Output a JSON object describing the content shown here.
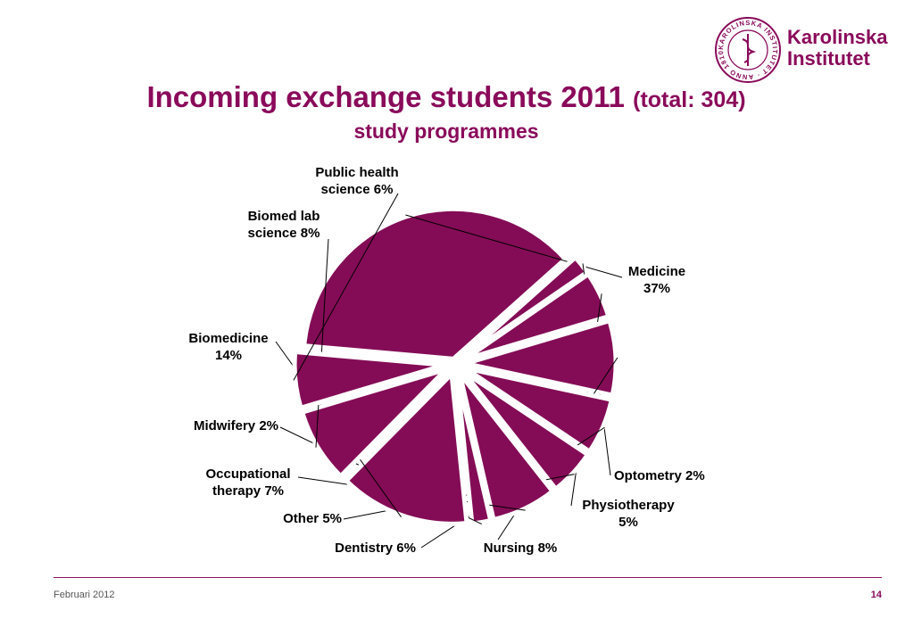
{
  "header": {
    "title_main": "Incoming exchange students 2011",
    "title_total": "(total: 304)",
    "subtitle": "study programmes"
  },
  "logo": {
    "line1": "Karolinska",
    "line2": "Institutet",
    "seal_text": "KAROLINSKA INSTITUTET · ANNO 1810"
  },
  "colors": {
    "accent": "#8a0a5a",
    "slice": "#840c56"
  },
  "chart_data": {
    "type": "pie",
    "title": "Incoming exchange students 2011 (total: 304)",
    "subtitle": "study programmes",
    "slices": [
      {
        "label": "Medicine",
        "value": 37,
        "text": "Medicine 37%"
      },
      {
        "label": "Optometry",
        "value": 2,
        "text": "Optometry 2%"
      },
      {
        "label": "Physiotherapy",
        "value": 5,
        "text": "Physiotherapy 5%"
      },
      {
        "label": "Nursing",
        "value": 8,
        "text": "Nursing 8%"
      },
      {
        "label": "Dentistry",
        "value": 6,
        "text": "Dentistry 6%"
      },
      {
        "label": "Other",
        "value": 5,
        "text": "Other 5%"
      },
      {
        "label": "Occupational therapy",
        "value": 7,
        "text": "Occupational therapy 7%"
      },
      {
        "label": "Midwifery",
        "value": 2,
        "text": "Midwifery 2%"
      },
      {
        "label": "Biomedicine",
        "value": 14,
        "text": "Biomedicine 14%"
      },
      {
        "label": "Biomed lab science",
        "value": 8,
        "text": "Biomed lab science 8%"
      },
      {
        "label": "Public health science",
        "value": 6,
        "text": "Public health science 6%"
      }
    ]
  },
  "footer": {
    "date": "Februari 2012",
    "page": "14"
  }
}
